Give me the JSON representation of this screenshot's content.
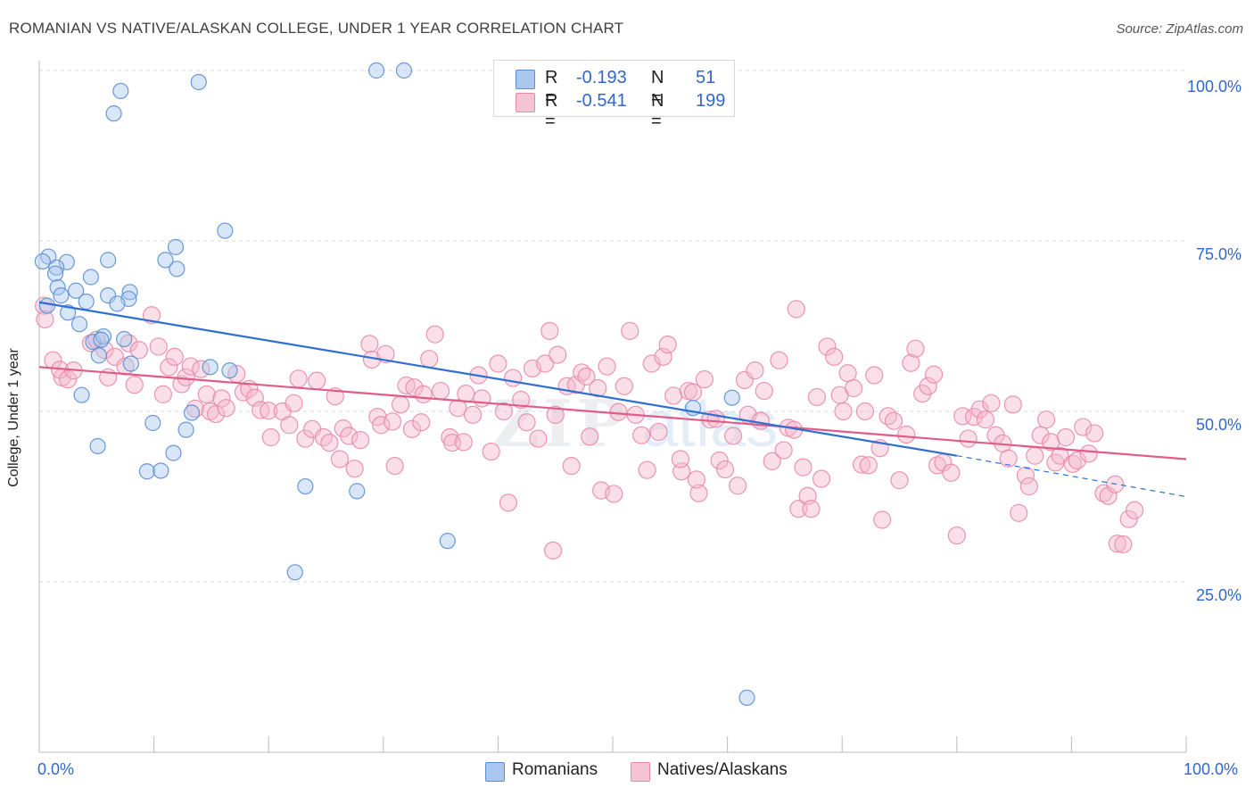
{
  "title": "ROMANIAN VS NATIVE/ALASKAN COLLEGE, UNDER 1 YEAR CORRELATION CHART",
  "source": "Source: ZipAtlas.com",
  "legend": {
    "rows": [
      {
        "r_label": "R =",
        "r_value": "-0.193",
        "n_label": "N =",
        "n_value": "51"
      },
      {
        "r_label": "R =",
        "r_value": "-0.541",
        "n_label": "N =",
        "n_value": "199"
      }
    ]
  },
  "bottom_legend": {
    "romanians": "Romanians",
    "natives": "Natives/Alaskans"
  },
  "x_tick_left": "0.0%",
  "x_tick_right": "100.0%",
  "colors": {
    "blue_fill": "#a9c7ef",
    "blue_stroke": "#5b8ed6",
    "blue_line": "#2f6fd1",
    "pink_fill": "#f4b8cb",
    "pink_stroke": "#e889a8",
    "pink_line": "#e05a8a",
    "tick_text": "#3366cc",
    "grid": "#d9d9d9"
  },
  "chart_data": {
    "type": "scatter",
    "title": "ROMANIAN VS NATIVE/ALASKAN COLLEGE, UNDER 1 YEAR CORRELATION CHART",
    "xlabel": "",
    "ylabel": "College, Under 1 year",
    "xlim": [
      0,
      100
    ],
    "ylim": [
      0,
      102
    ],
    "y_ticks": [
      25,
      50,
      75,
      100
    ],
    "y_tick_labels": [
      "25.0%",
      "50.0%",
      "75.0%",
      "100.0%"
    ],
    "grid": "horizontal dashed",
    "series": [
      {
        "name": "Romanians",
        "r": -0.193,
        "n": 51,
        "trend": {
          "x0": 0,
          "y0": 66.0,
          "x1": 80,
          "y1": 43.5,
          "dash_to_x": 100,
          "dash_to_y": 37.5
        },
        "points": [
          [
            29.4,
            100
          ],
          [
            31.8,
            100
          ],
          [
            13.9,
            98.3
          ],
          [
            7.1,
            97.0
          ],
          [
            6.5,
            93.7
          ],
          [
            16.2,
            76.5
          ],
          [
            11.9,
            74.1
          ],
          [
            0.8,
            72.7
          ],
          [
            0.3,
            72.0
          ],
          [
            2.4,
            71.9
          ],
          [
            1.5,
            71.1
          ],
          [
            11.0,
            72.2
          ],
          [
            6.0,
            72.2
          ],
          [
            12.0,
            70.9
          ],
          [
            1.4,
            70.2
          ],
          [
            4.5,
            69.7
          ],
          [
            1.6,
            68.2
          ],
          [
            3.2,
            67.7
          ],
          [
            6.0,
            67.0
          ],
          [
            7.9,
            67.5
          ],
          [
            1.9,
            67.0
          ],
          [
            7.8,
            66.5
          ],
          [
            0.7,
            65.5
          ],
          [
            4.1,
            66.1
          ],
          [
            6.8,
            65.8
          ],
          [
            2.5,
            64.5
          ],
          [
            3.5,
            62.8
          ],
          [
            4.7,
            60.2
          ],
          [
            5.6,
            61.0
          ],
          [
            5.4,
            60.5
          ],
          [
            7.4,
            60.6
          ],
          [
            8.0,
            57.0
          ],
          [
            14.9,
            56.5
          ],
          [
            16.6,
            56.0
          ],
          [
            5.2,
            58.2
          ],
          [
            3.7,
            52.4
          ],
          [
            13.3,
            49.8
          ],
          [
            9.9,
            48.3
          ],
          [
            12.8,
            47.3
          ],
          [
            5.1,
            44.9
          ],
          [
            11.7,
            43.9
          ],
          [
            9.4,
            41.2
          ],
          [
            10.6,
            41.3
          ],
          [
            23.2,
            39.0
          ],
          [
            27.7,
            38.3
          ],
          [
            35.6,
            31.0
          ],
          [
            22.3,
            26.4
          ],
          [
            60.4,
            52.0
          ],
          [
            57.0,
            50.5
          ],
          [
            61.7,
            8.0
          ],
          [
            45.5,
            100
          ]
        ]
      },
      {
        "name": "Natives/Alaskans",
        "r": -0.541,
        "n": 199,
        "trend": {
          "x0": 0,
          "y0": 56.5,
          "x1": 100,
          "y1": 43.0
        },
        "points": [
          [
            0.4,
            65.5
          ],
          [
            0.5,
            63.5
          ],
          [
            1.2,
            57.5
          ],
          [
            2.0,
            55.0
          ],
          [
            1.8,
            56.1
          ],
          [
            2.5,
            54.7
          ],
          [
            3.0,
            56.0
          ],
          [
            4.5,
            60.0
          ],
          [
            5.0,
            60.5
          ],
          [
            5.7,
            59.0
          ],
          [
            6.0,
            55.0
          ],
          [
            6.6,
            58.0
          ],
          [
            7.5,
            56.6
          ],
          [
            7.8,
            60.0
          ],
          [
            8.3,
            53.9
          ],
          [
            8.7,
            59.0
          ],
          [
            9.8,
            64.1
          ],
          [
            10.4,
            59.5
          ],
          [
            10.8,
            52.5
          ],
          [
            11.3,
            56.5
          ],
          [
            11.8,
            58.0
          ],
          [
            12.4,
            54.0
          ],
          [
            12.8,
            55.0
          ],
          [
            13.2,
            56.6
          ],
          [
            13.6,
            50.4
          ],
          [
            14.1,
            56.2
          ],
          [
            14.6,
            52.5
          ],
          [
            14.9,
            50.0
          ],
          [
            15.4,
            49.6
          ],
          [
            15.9,
            51.9
          ],
          [
            16.3,
            50.5
          ],
          [
            17.2,
            55.5
          ],
          [
            17.8,
            52.8
          ],
          [
            18.3,
            53.3
          ],
          [
            18.8,
            52.0
          ],
          [
            19.3,
            50.2
          ],
          [
            20.0,
            50.1
          ],
          [
            20.2,
            46.2
          ],
          [
            21.2,
            50.0
          ],
          [
            21.8,
            48.0
          ],
          [
            22.2,
            51.2
          ],
          [
            22.6,
            54.8
          ],
          [
            23.2,
            46.0
          ],
          [
            23.8,
            47.4
          ],
          [
            24.2,
            54.5
          ],
          [
            24.8,
            46.2
          ],
          [
            25.3,
            45.4
          ],
          [
            25.8,
            52.2
          ],
          [
            26.2,
            43.0
          ],
          [
            26.5,
            47.5
          ],
          [
            27.0,
            46.4
          ],
          [
            27.5,
            41.6
          ],
          [
            28.0,
            45.8
          ],
          [
            28.8,
            59.9
          ],
          [
            29.0,
            57.6
          ],
          [
            29.5,
            49.2
          ],
          [
            29.8,
            48.0
          ],
          [
            30.2,
            58.4
          ],
          [
            30.8,
            48.5
          ],
          [
            31.5,
            51.0
          ],
          [
            32.0,
            53.8
          ],
          [
            32.5,
            47.4
          ],
          [
            33.3,
            48.4
          ],
          [
            34.0,
            57.7
          ],
          [
            34.5,
            61.3
          ],
          [
            35.0,
            53.0
          ],
          [
            35.8,
            46.2
          ],
          [
            36.0,
            45.4
          ],
          [
            36.5,
            50.5
          ],
          [
            37.2,
            52.6
          ],
          [
            37.8,
            49.5
          ],
          [
            38.3,
            55.3
          ],
          [
            38.6,
            51.9
          ],
          [
            39.4,
            44.1
          ],
          [
            40.0,
            57.0
          ],
          [
            40.5,
            50.0
          ],
          [
            40.9,
            36.6
          ],
          [
            41.3,
            54.9
          ],
          [
            42.0,
            51.7
          ],
          [
            42.5,
            48.4
          ],
          [
            43.0,
            56.3
          ],
          [
            43.5,
            46.0
          ],
          [
            44.1,
            57.0
          ],
          [
            44.5,
            61.8
          ],
          [
            45.0,
            49.5
          ],
          [
            45.2,
            58.3
          ],
          [
            46.0,
            53.7
          ],
          [
            46.4,
            42.0
          ],
          [
            46.8,
            53.9
          ],
          [
            47.3,
            55.7
          ],
          [
            47.7,
            55.1
          ],
          [
            48.0,
            46.3
          ],
          [
            48.7,
            53.4
          ],
          [
            49.0,
            38.4
          ],
          [
            49.5,
            56.6
          ],
          [
            50.1,
            37.9
          ],
          [
            50.5,
            49.9
          ],
          [
            51.0,
            53.7
          ],
          [
            51.5,
            61.8
          ],
          [
            52.0,
            49.5
          ],
          [
            52.5,
            46.5
          ],
          [
            53.0,
            41.4
          ],
          [
            53.4,
            57.0
          ],
          [
            54.0,
            47.0
          ],
          [
            54.4,
            58.0
          ],
          [
            54.8,
            59.8
          ],
          [
            55.3,
            52.3
          ],
          [
            56.0,
            41.2
          ],
          [
            56.6,
            53.0
          ],
          [
            57.0,
            52.8
          ],
          [
            57.5,
            38.0
          ],
          [
            58.0,
            54.7
          ],
          [
            58.5,
            48.8
          ],
          [
            59.0,
            48.9
          ],
          [
            59.3,
            42.8
          ],
          [
            59.8,
            41.5
          ],
          [
            60.5,
            46.4
          ],
          [
            60.9,
            39.1
          ],
          [
            61.5,
            54.6
          ],
          [
            61.8,
            49.5
          ],
          [
            62.4,
            56.0
          ],
          [
            62.9,
            48.6
          ],
          [
            63.2,
            53.0
          ],
          [
            63.9,
            42.7
          ],
          [
            64.5,
            57.5
          ],
          [
            64.9,
            44.3
          ],
          [
            65.3,
            47.6
          ],
          [
            65.8,
            47.3
          ],
          [
            66.2,
            35.7
          ],
          [
            66.6,
            41.8
          ],
          [
            67.0,
            37.6
          ],
          [
            67.3,
            35.7
          ],
          [
            67.8,
            52.1
          ],
          [
            68.2,
            40.1
          ],
          [
            68.7,
            59.5
          ],
          [
            69.3,
            58.0
          ],
          [
            69.8,
            52.4
          ],
          [
            70.1,
            50.0
          ],
          [
            70.5,
            55.6
          ],
          [
            71.0,
            53.4
          ],
          [
            71.7,
            42.2
          ],
          [
            72.3,
            42.1
          ],
          [
            72.8,
            55.3
          ],
          [
            73.3,
            44.6
          ],
          [
            73.5,
            34.1
          ],
          [
            74.0,
            49.3
          ],
          [
            74.5,
            48.6
          ],
          [
            75.0,
            39.9
          ],
          [
            75.6,
            46.6
          ],
          [
            76.0,
            57.1
          ],
          [
            76.4,
            59.2
          ],
          [
            77.0,
            52.6
          ],
          [
            77.5,
            53.7
          ],
          [
            78.0,
            55.4
          ],
          [
            78.3,
            42.1
          ],
          [
            78.8,
            42.5
          ],
          [
            79.5,
            41.0
          ],
          [
            80.0,
            31.8
          ],
          [
            80.5,
            49.3
          ],
          [
            81.0,
            46.0
          ],
          [
            81.5,
            49.2
          ],
          [
            82.0,
            50.3
          ],
          [
            82.5,
            48.8
          ],
          [
            83.0,
            51.2
          ],
          [
            83.4,
            46.5
          ],
          [
            84.0,
            45.3
          ],
          [
            84.5,
            43.1
          ],
          [
            84.9,
            51.0
          ],
          [
            85.4,
            35.1
          ],
          [
            86.0,
            40.6
          ],
          [
            86.3,
            39.0
          ],
          [
            86.8,
            43.5
          ],
          [
            87.3,
            46.5
          ],
          [
            87.8,
            48.8
          ],
          [
            88.2,
            45.5
          ],
          [
            88.6,
            42.5
          ],
          [
            89.0,
            43.5
          ],
          [
            89.5,
            46.2
          ],
          [
            90.1,
            42.3
          ],
          [
            90.5,
            42.8
          ],
          [
            91.0,
            47.7
          ],
          [
            91.5,
            43.8
          ],
          [
            92.0,
            46.8
          ],
          [
            92.8,
            38.0
          ],
          [
            93.2,
            37.6
          ],
          [
            93.8,
            39.3
          ],
          [
            94.0,
            30.6
          ],
          [
            94.5,
            30.5
          ],
          [
            95.0,
            34.2
          ],
          [
            95.5,
            35.5
          ],
          [
            37.0,
            45.5
          ],
          [
            66.0,
            65.0
          ],
          [
            72.0,
            50.0
          ],
          [
            55.9,
            43.0
          ],
          [
            31.0,
            42.0
          ],
          [
            57.3,
            40.0
          ],
          [
            44.8,
            29.6
          ],
          [
            32.7,
            53.5
          ],
          [
            33.5,
            52.5
          ]
        ]
      }
    ]
  }
}
